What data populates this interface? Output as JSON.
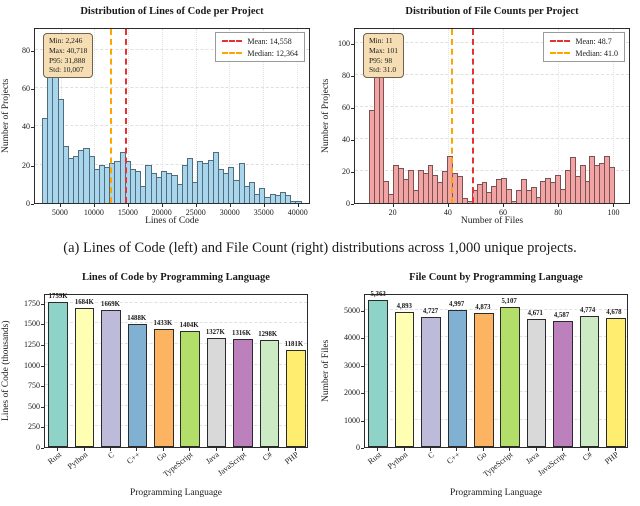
{
  "figure": {
    "caption": "(a) Lines of Code (left) and File Count (right) distributions across 1,000 unique projects.",
    "background": "#ffffff"
  },
  "style": {
    "hist_blue_fill": "#a9d6ec",
    "hist_blue_edge": "#4f6d7a",
    "hist_red_fill": "#f2a3a3",
    "hist_red_edge": "#7a5252",
    "mean_color": "#e53131",
    "median_color": "#ffa500",
    "stats_box_bg": "#f5deb3",
    "bar_palette": [
      "#8dd3c7",
      "#ffffb3",
      "#bebada",
      "#80b1d3",
      "#fdb462",
      "#b3de69",
      "#d9d9d9",
      "#bc80bd",
      "#ccebc5",
      "#ffed6f"
    ]
  },
  "chart_data": [
    {
      "type": "histogram",
      "title": "Distribution of Lines of Code per Project",
      "xlabel": "Lines of Code",
      "ylabel": "Number of Projects",
      "xlim": [
        1200,
        41800
      ],
      "ylim": [
        0,
        92
      ],
      "x_start": 2246,
      "x_end": 40718,
      "counts": [
        45,
        82,
        84,
        55,
        30,
        24,
        25,
        28,
        29,
        25,
        18,
        20,
        19,
        21,
        22,
        27,
        22,
        18,
        17,
        9,
        20,
        16,
        14,
        17,
        16,
        15,
        10,
        20,
        24,
        11,
        22,
        21,
        23,
        27,
        18,
        16,
        19,
        12,
        21,
        9,
        11,
        5,
        8,
        3,
        5,
        4,
        6,
        4,
        1,
        1
      ],
      "xticks": [
        5000,
        10000,
        15000,
        20000,
        25000,
        30000,
        35000,
        40000
      ],
      "xtick_labels": [
        "5000",
        "10000",
        "15000",
        "20000",
        "25000",
        "30000",
        "35000",
        "40000"
      ],
      "yticks": [
        0,
        20,
        40,
        60,
        80
      ],
      "mean": {
        "value": 14558,
        "label": "Mean: 14,558"
      },
      "median": {
        "value": 12364,
        "label": "Median: 12,364"
      },
      "stats_lines": [
        "Min: 2,246",
        "Max: 40,718",
        "P95: 31,888",
        "Std: 10,007"
      ],
      "fill": "blue",
      "grid": true,
      "legend_position": "top-right"
    },
    {
      "type": "histogram",
      "title": "Distribution of File Counts per Project",
      "xlabel": "Number of Files",
      "ylabel": "Number of Projects",
      "xlim": [
        6,
        106
      ],
      "ylim": [
        0,
        110
      ],
      "x_start": 11,
      "x_end": 101,
      "counts": [
        59,
        104,
        100,
        14,
        6,
        24,
        22,
        15,
        21,
        8,
        21,
        19,
        24,
        18,
        13,
        20,
        30,
        19,
        17,
        3,
        1,
        8,
        12,
        13,
        7,
        11,
        15,
        16,
        9,
        1,
        8,
        15,
        8,
        10,
        4,
        14,
        16,
        13,
        18,
        9,
        21,
        29,
        17,
        24,
        14,
        30,
        24,
        25,
        30,
        23
      ],
      "xticks": [
        20,
        40,
        60,
        80,
        100
      ],
      "xtick_labels": [
        "20",
        "40",
        "60",
        "80",
        "100"
      ],
      "yticks": [
        0,
        20,
        40,
        60,
        80,
        100
      ],
      "mean": {
        "value": 48.7,
        "label": "Mean: 48.7"
      },
      "median": {
        "value": 41.0,
        "label": "Median: 41.0"
      },
      "stats_lines": [
        "Min: 11",
        "Max: 101",
        "P95: 98",
        "Std: 31.0"
      ],
      "fill": "red",
      "grid": true,
      "legend_position": "top-right"
    },
    {
      "type": "bar",
      "title": "Lines of Code by Programming Language",
      "xlabel": "Programming Language",
      "ylabel": "Lines of Code (thousands)",
      "categories": [
        "Rust",
        "Python",
        "C",
        "C++",
        "Go",
        "TypeScript",
        "Java",
        "JavaScript",
        "C#",
        "PHP"
      ],
      "values": [
        1759,
        1684,
        1669,
        1488,
        1433,
        1404,
        1327,
        1316,
        1298,
        1181
      ],
      "value_labels": [
        "1759K",
        "1684K",
        "1669K",
        "1488K",
        "1433K",
        "1404K",
        "1327K",
        "1316K",
        "1298K",
        "1181K"
      ],
      "yticks": [
        0,
        250,
        500,
        750,
        1000,
        1250,
        1500,
        1750
      ],
      "ylim": [
        0,
        1870
      ],
      "grid": true
    },
    {
      "type": "bar",
      "title": "File Count by Programming Language",
      "xlabel": "Programming Language",
      "ylabel": "Number of Files",
      "categories": [
        "Rust",
        "Python",
        "C",
        "C++",
        "Go",
        "TypeScript",
        "Java",
        "JavaScript",
        "C#",
        "PHP"
      ],
      "values": [
        5363,
        4893,
        4727,
        4997,
        4873,
        5107,
        4671,
        4587,
        4774,
        4678
      ],
      "value_labels": [
        "5,363",
        "4,893",
        "4,727",
        "4,997",
        "4,873",
        "5,107",
        "4,671",
        "4,587",
        "4,774",
        "4,678"
      ],
      "yticks": [
        0,
        1000,
        2000,
        3000,
        4000,
        5000
      ],
      "ylim": [
        0,
        5600
      ],
      "grid": true
    }
  ]
}
